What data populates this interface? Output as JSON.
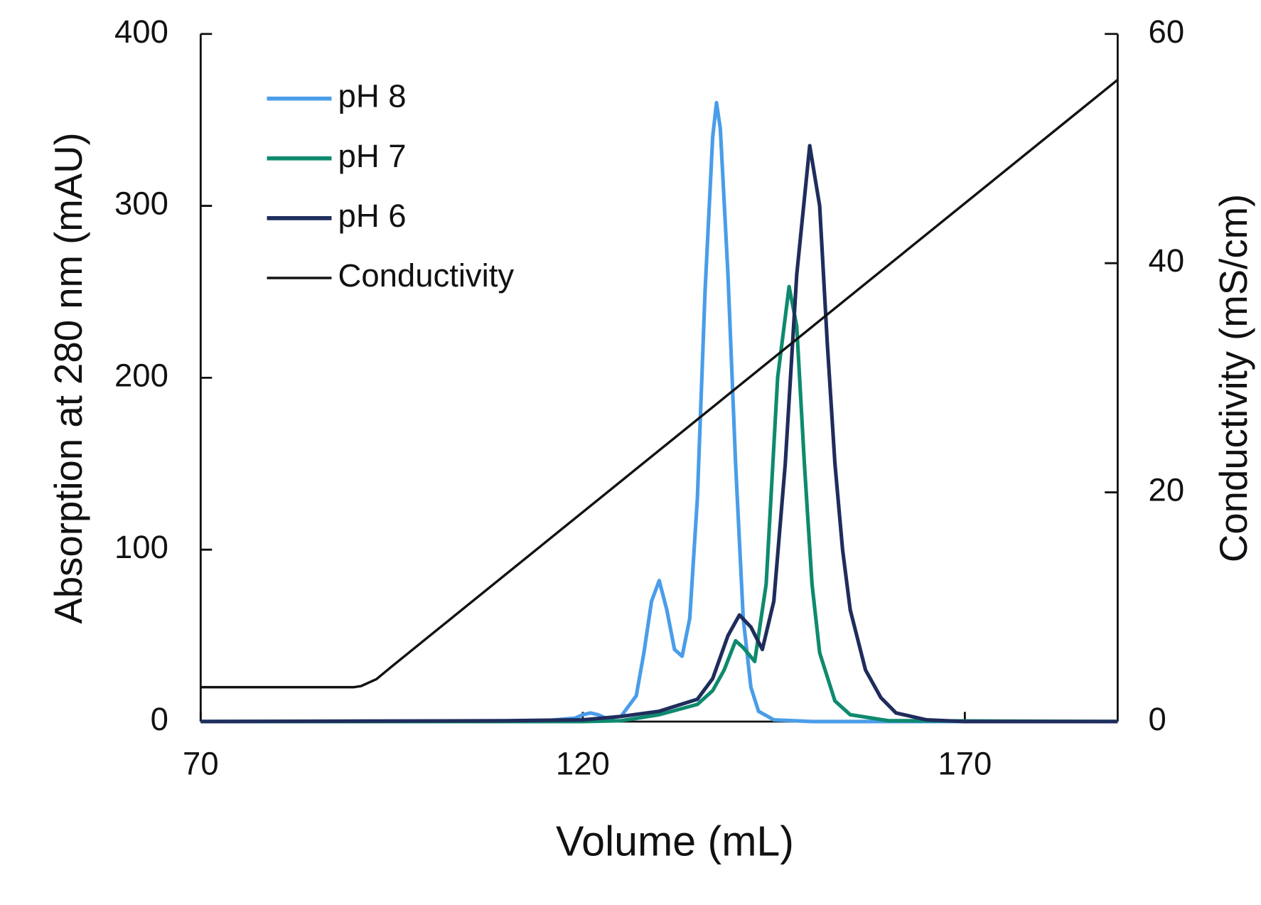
{
  "chart_data": {
    "type": "line",
    "xlabel": "Volume (mL)",
    "ylabel": "Absorption at 280 nm (mAU)",
    "y2label": "Conductivity (mS/cm)",
    "xlim": [
      70,
      190
    ],
    "xticks": [
      70,
      120,
      170
    ],
    "ylim": [
      0,
      400
    ],
    "yticks": [
      0,
      100,
      200,
      300,
      400
    ],
    "y2lim": [
      0,
      60
    ],
    "y2ticks": [
      0,
      20,
      40,
      60
    ],
    "legend": "upper-left",
    "series": [
      {
        "name": "pH 8",
        "color": "#4a9de8",
        "x": [
          70,
          100,
          115,
          119,
          120,
          121,
          122,
          123,
          125,
          127,
          128,
          129,
          130,
          131,
          132,
          133,
          134,
          135,
          136,
          137,
          137.5,
          138,
          139,
          140,
          141,
          142,
          143,
          145,
          150,
          190
        ],
        "values": [
          0,
          0,
          0.5,
          2,
          4,
          5,
          4,
          2,
          3,
          15,
          40,
          70,
          82,
          65,
          42,
          38,
          60,
          130,
          250,
          340,
          360,
          345,
          260,
          150,
          60,
          20,
          6,
          1,
          0,
          0
        ]
      },
      {
        "name": "pH 7",
        "color": "#0e8a6e",
        "x": [
          70,
          120,
          125,
          130,
          135,
          137,
          138.5,
          140,
          141,
          142.5,
          144,
          145.5,
          147,
          148,
          149,
          150,
          151,
          153,
          155,
          160,
          190
        ],
        "values": [
          0,
          0,
          0.5,
          4,
          10,
          18,
          30,
          47,
          43,
          35,
          80,
          200,
          253,
          230,
          150,
          80,
          40,
          12,
          4,
          0.5,
          0
        ]
      },
      {
        "name": "pH 6",
        "color": "#1f2d5c",
        "x": [
          70,
          110,
          120,
          125,
          130,
          135,
          137,
          139,
          140.5,
          142,
          143.5,
          145,
          146.5,
          148,
          149.7,
          151,
          152,
          153,
          154,
          155,
          157,
          159,
          161,
          165,
          170,
          190
        ],
        "values": [
          0,
          0.5,
          1,
          3,
          6,
          13,
          25,
          50,
          62,
          55,
          42,
          70,
          150,
          260,
          335,
          300,
          220,
          150,
          100,
          65,
          30,
          14,
          5,
          1,
          0,
          0
        ]
      },
      {
        "name": "Conductivity",
        "color": "#111111",
        "axis": "y2",
        "x": [
          70,
          90,
          91,
          93,
          95,
          100,
          190
        ],
        "values": [
          3,
          3,
          3.1,
          3.7,
          4.8,
          7.5,
          56
        ]
      }
    ]
  }
}
